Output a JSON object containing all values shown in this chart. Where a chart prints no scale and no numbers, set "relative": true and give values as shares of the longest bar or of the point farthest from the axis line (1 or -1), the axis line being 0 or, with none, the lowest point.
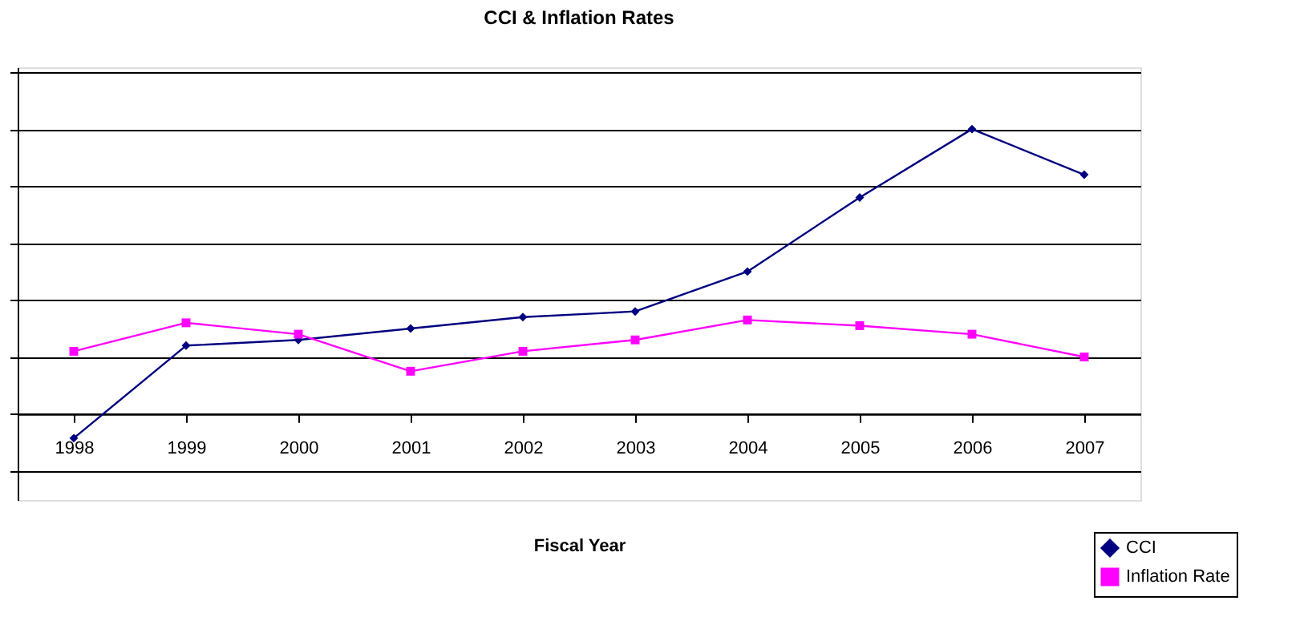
{
  "chart_data": {
    "type": "line",
    "title": "CCI & Inflation Rates",
    "xlabel": "Fiscal Year",
    "relative": true,
    "grid": "y",
    "legend": "bottom right",
    "line_style": "solid",
    "categories": [
      "1998",
      "1999",
      "2000",
      "2001",
      "2002",
      "2003",
      "2004",
      "2005",
      "2006",
      "2007"
    ],
    "series": [
      {
        "name": "CCI",
        "color": "#000080",
        "marker": "diamond",
        "values": [
          -0.085,
          0.24,
          0.26,
          0.3,
          0.34,
          0.36,
          0.5,
          0.76,
          1.0,
          0.84
        ]
      },
      {
        "name": "Inflation Rate",
        "color": "#ff00ff",
        "marker": "square",
        "values": [
          0.22,
          0.32,
          0.28,
          0.15,
          0.22,
          0.26,
          0.33,
          0.31,
          0.28,
          0.2
        ]
      }
    ]
  }
}
